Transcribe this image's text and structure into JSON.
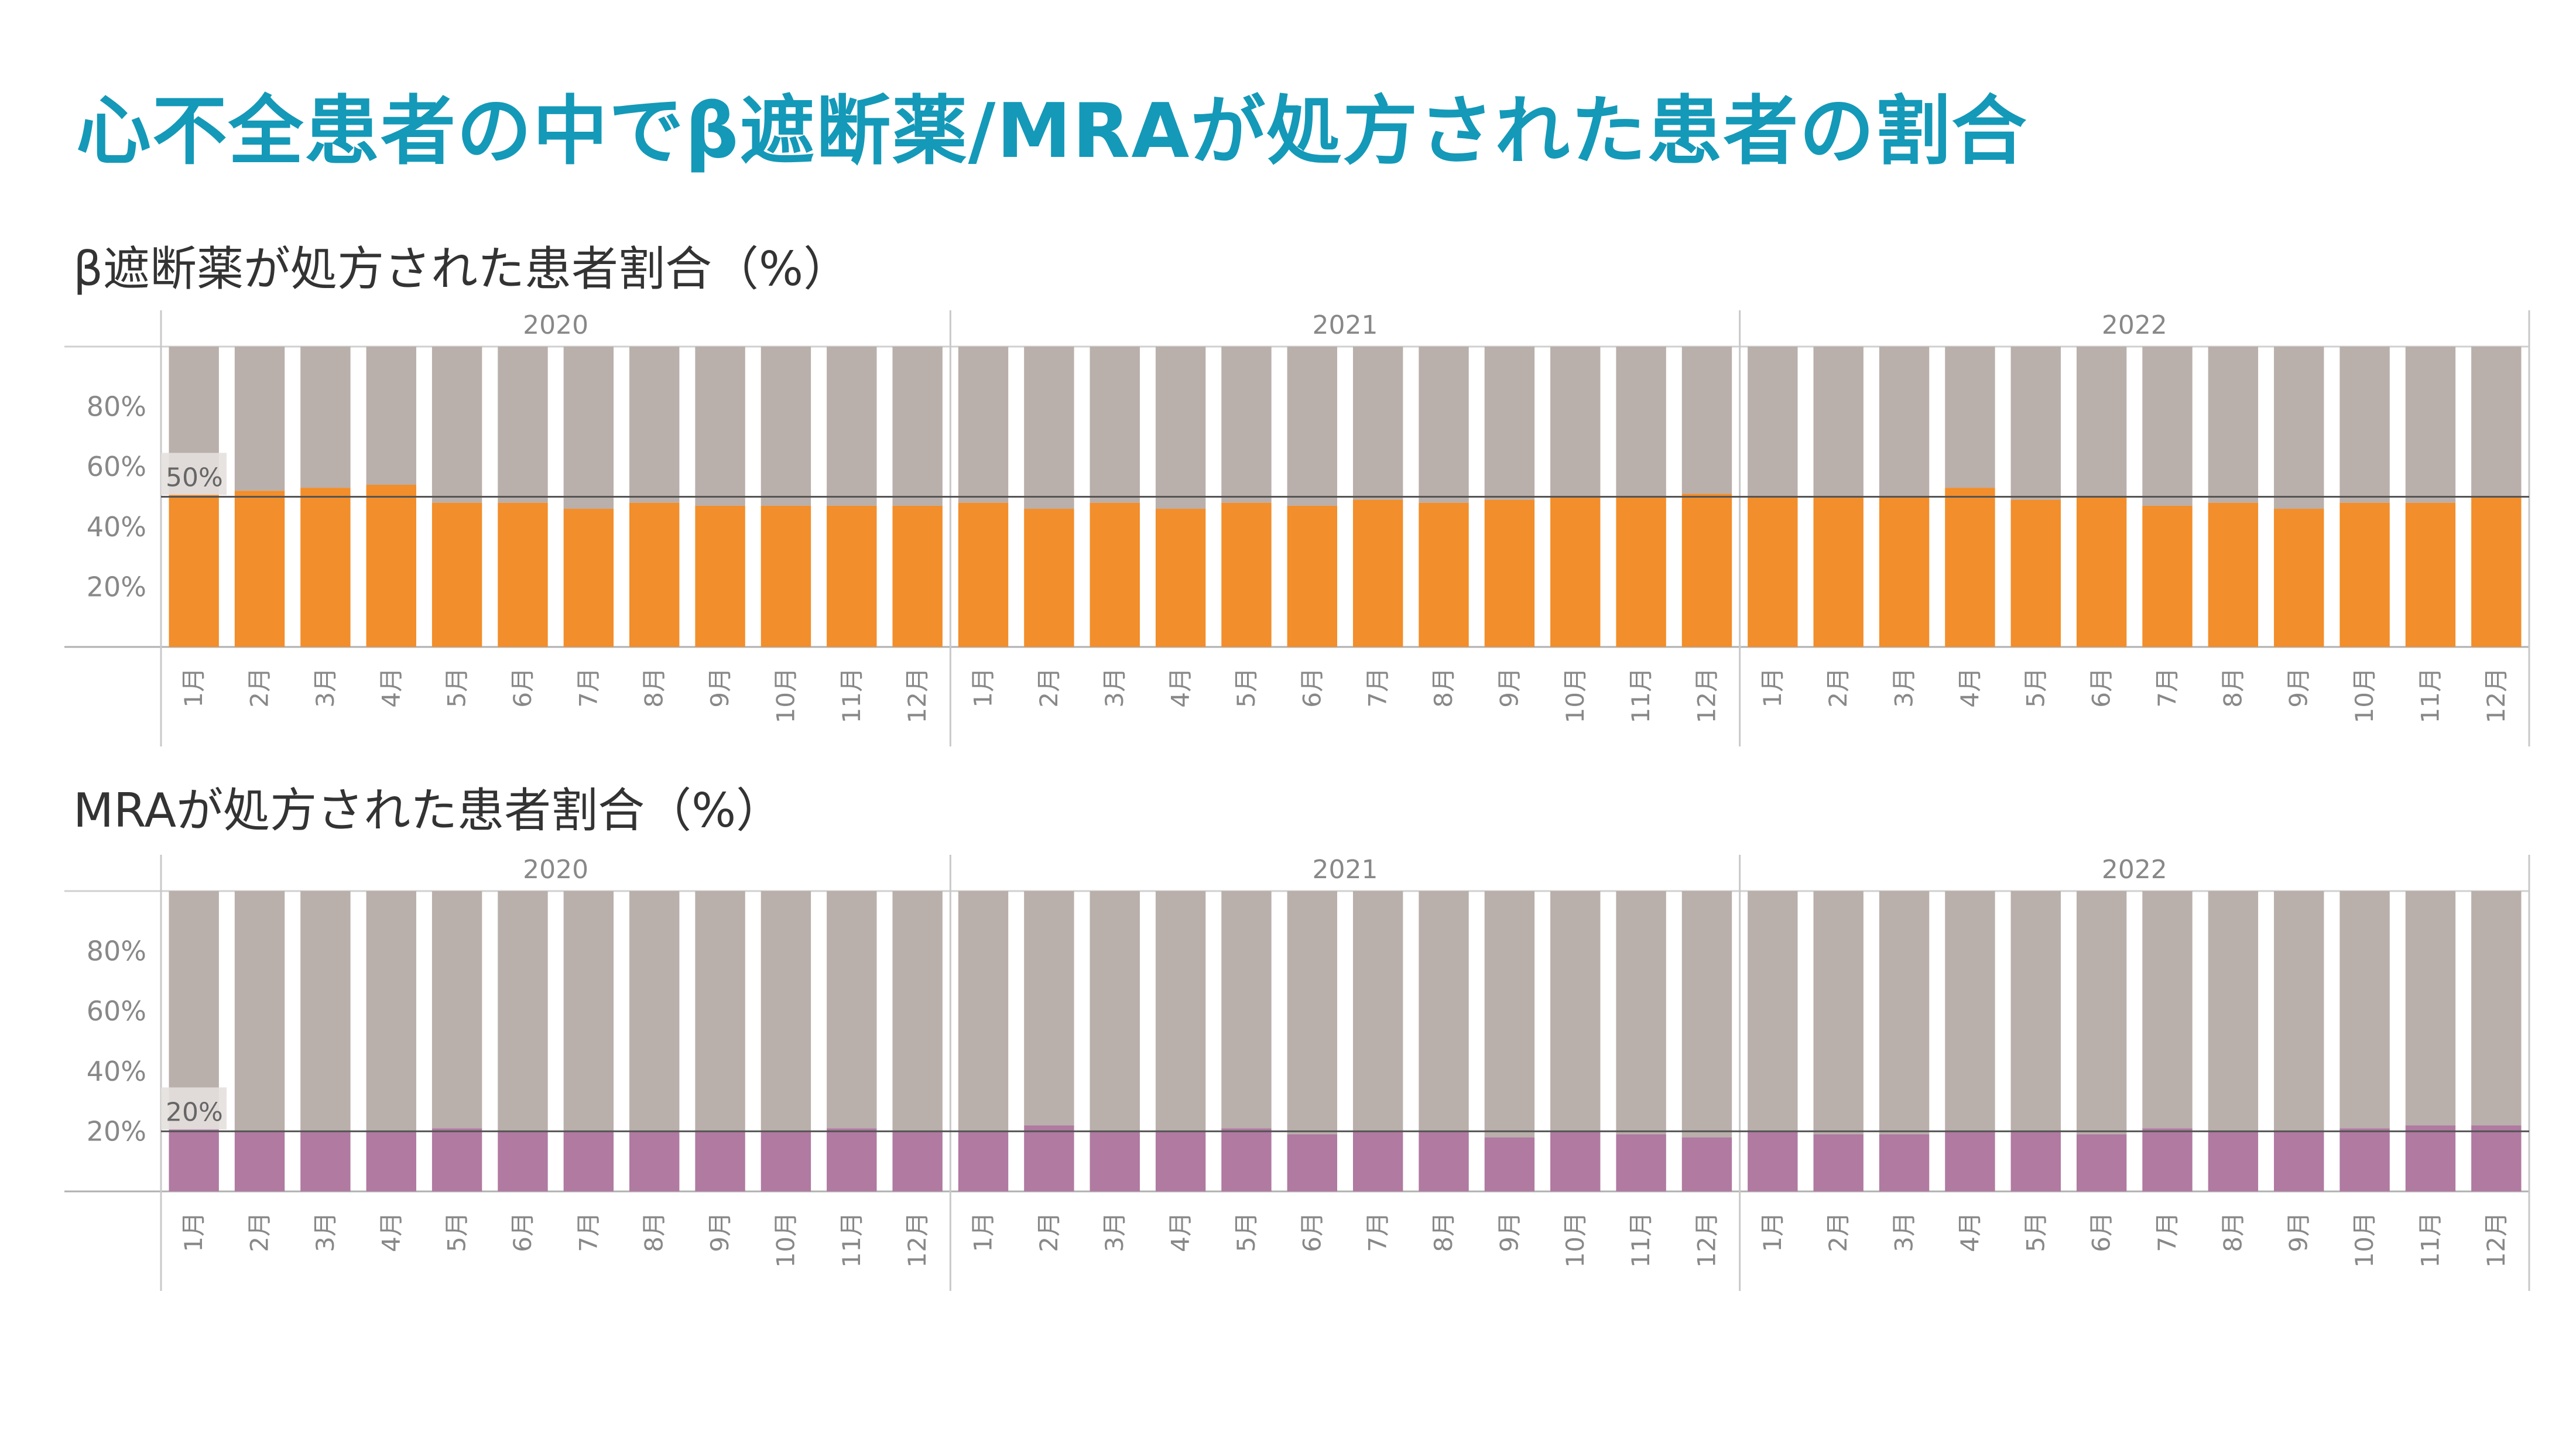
{
  "page": {
    "title": "心不全患者の中でβ遮断薬/MRAが処方された患者の割合"
  },
  "colors": {
    "title": "#1499b8",
    "background_bar": "#b9afab",
    "beta_blocker": "#f28e2b",
    "mra": "#b07aa1",
    "reference_line": "#555555"
  },
  "chart_data": [
    {
      "type": "bar",
      "title": "β遮断薬が処方された患者割合（%）",
      "years": [
        "2020",
        "2021",
        "2022"
      ],
      "months": [
        "1月",
        "2月",
        "3月",
        "4月",
        "5月",
        "6月",
        "7月",
        "8月",
        "9月",
        "10月",
        "11月",
        "12月"
      ],
      "series": [
        {
          "values": [
            51,
            52,
            53,
            54,
            48,
            48,
            46,
            48,
            47,
            47,
            47,
            47,
            48,
            46,
            48,
            46,
            48,
            47,
            49,
            48,
            49,
            50,
            50,
            51,
            50,
            50,
            50,
            53,
            49,
            50,
            47,
            48,
            46,
            48,
            48,
            50
          ]
        }
      ],
      "stacked_remainder_to": 100,
      "ylim": [
        0,
        100
      ],
      "yticks": [
        "20%",
        "40%",
        "60%",
        "80%"
      ],
      "reference_line": {
        "value": 50,
        "label": "50%"
      },
      "grid": false
    },
    {
      "type": "bar",
      "title": "MRAが処方された患者割合（%）",
      "years": [
        "2020",
        "2021",
        "2022"
      ],
      "months": [
        "1月",
        "2月",
        "3月",
        "4月",
        "5月",
        "6月",
        "7月",
        "8月",
        "9月",
        "10月",
        "11月",
        "12月"
      ],
      "series": [
        {
          "values": [
            21,
            20,
            20,
            20,
            21,
            20,
            20,
            20,
            20,
            20,
            21,
            20,
            20,
            22,
            20,
            20,
            21,
            19,
            20,
            20,
            18,
            20,
            19,
            18,
            20,
            19,
            19,
            20,
            20,
            19,
            21,
            20,
            20,
            21,
            22,
            22
          ]
        }
      ],
      "stacked_remainder_to": 100,
      "ylim": [
        0,
        100
      ],
      "yticks": [
        "20%",
        "40%",
        "60%",
        "80%"
      ],
      "reference_line": {
        "value": 20,
        "label": "20%"
      },
      "grid": false
    }
  ]
}
